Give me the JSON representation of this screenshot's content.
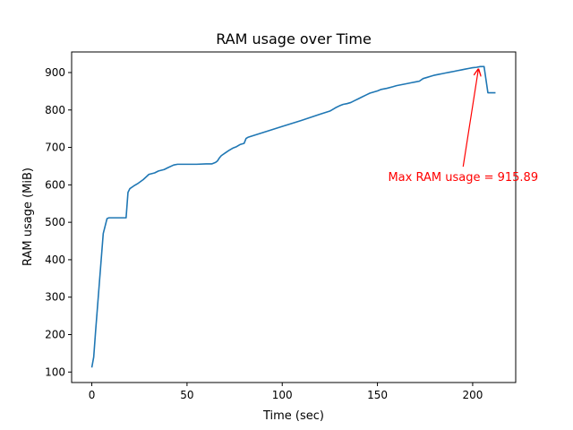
{
  "chart_data": {
    "type": "line",
    "title": "RAM usage over Time",
    "xlabel": "Time (sec)",
    "ylabel": "RAM usage (MiB)",
    "xlim": [
      -10.6,
      222.6
    ],
    "ylim": [
      72,
      955
    ],
    "x_ticks": [
      0,
      50,
      100,
      150,
      200
    ],
    "y_ticks": [
      100,
      200,
      300,
      400,
      500,
      600,
      700,
      800,
      900
    ],
    "grid": false,
    "series": [
      {
        "color": "#1f77b4",
        "x": [
          0,
          1,
          2,
          4,
          6,
          8,
          9,
          10,
          12,
          15,
          18,
          19,
          20,
          22,
          24,
          27,
          30,
          33,
          35,
          38,
          40,
          43,
          45,
          50,
          55,
          60,
          63,
          65,
          66,
          67,
          68,
          70,
          72,
          74,
          76,
          78,
          80,
          81,
          82,
          90,
          100,
          110,
          120,
          125,
          127,
          128,
          130,
          132,
          134,
          136,
          138,
          140,
          142,
          144,
          146,
          148,
          150,
          152,
          155,
          158,
          160,
          163,
          166,
          168,
          170,
          172,
          174,
          176,
          178,
          180,
          182,
          184,
          186,
          188,
          190,
          192,
          194,
          196,
          198,
          200,
          202,
          204,
          206,
          208,
          210,
          212
        ],
        "y": [
          112,
          140,
          210,
          340,
          470,
          510,
          512,
          512,
          512,
          512,
          512,
          580,
          590,
          597,
          603,
          614,
          628,
          632,
          637,
          641,
          646,
          653,
          655,
          655,
          655,
          656,
          656,
          660,
          664,
          672,
          678,
          685,
          692,
          698,
          702,
          708,
          711,
          724,
          727,
          740,
          756,
          772,
          789,
          797,
          803,
          806,
          811,
          815,
          817,
          820,
          825,
          830,
          835,
          840,
          845,
          848,
          851,
          855,
          858,
          862,
          865,
          868,
          871,
          873,
          875,
          877,
          884,
          887,
          890,
          893,
          895,
          897,
          899,
          901,
          903,
          905,
          907,
          909,
          911,
          913,
          914,
          915.89,
          915.89,
          846,
          846,
          846
        ]
      }
    ],
    "annotations": [
      {
        "text": "Max RAM usage = 915.89",
        "color": "#ff0000",
        "point": [
          203,
          915.89
        ],
        "text_at": [
          195,
          620
        ]
      }
    ]
  }
}
